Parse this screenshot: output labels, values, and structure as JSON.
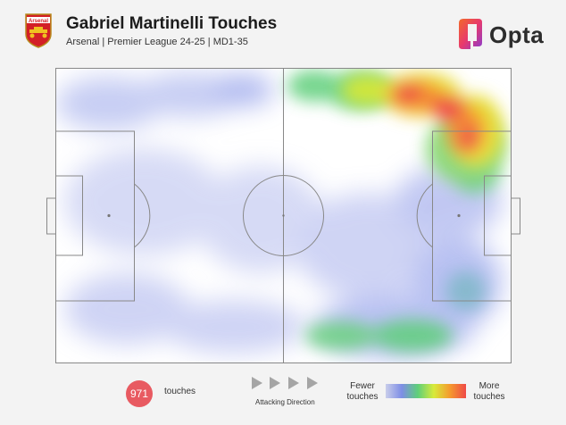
{
  "header": {
    "title": "Gabriel Martinelli Touches",
    "subtitle": "Arsenal | Premier League 24-25 | MD1-35",
    "club_crest_icon": "arsenal-crest-icon",
    "club_crest_text": "Arsenal",
    "brand_logo_icon": "opta-logo-icon",
    "brand_name": "Opta"
  },
  "legend": {
    "touches_count": "971",
    "touches_label": "touches",
    "attacking_direction_label": "Attacking Direction",
    "fewer_label": "Fewer touches",
    "more_label": "More touches",
    "arrow_icon": "triangle-right-icon"
  },
  "colors": {
    "background": "#f3f3f3",
    "pitch_lines": "#888888",
    "badge": "#e85a61",
    "heat_low": "#7e8ee6",
    "heat_mid": "#5fcf7a",
    "heat_high": "#ef4a47"
  }
}
